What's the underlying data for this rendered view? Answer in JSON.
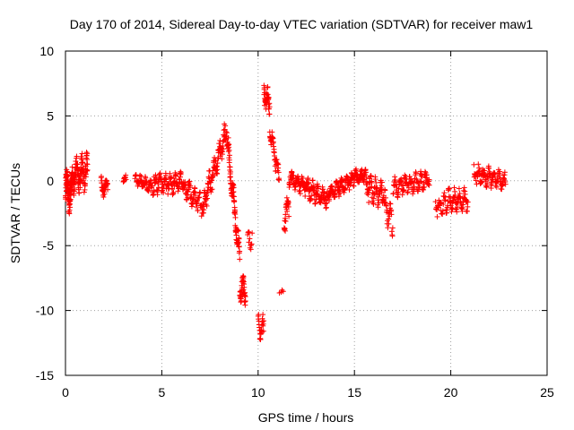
{
  "chart_data": {
    "type": "scatter",
    "title": "Day 170 of 2014, Sidereal Day-to-day VTEC variation (SDTVAR) for receiver maw1",
    "xlabel": "GPS time / hours",
    "ylabel": "SDTVAR / TECUs",
    "xlim": [
      0,
      25
    ],
    "ylim": [
      -15,
      10
    ],
    "xticks": [
      0,
      5,
      10,
      15,
      20,
      25
    ],
    "yticks": [
      -15,
      -10,
      -5,
      0,
      5,
      10
    ],
    "grid": true,
    "marker": "+",
    "color": "#ff0000",
    "series": [
      {
        "name": "SDTVAR",
        "segments": [
          {
            "t0": 0.0,
            "t1": 0.35,
            "base": -0.8,
            "slope": 0.0,
            "amp": 1.8,
            "density": 90
          },
          {
            "t0": 0.35,
            "t1": 1.15,
            "base": 0.3,
            "slope": 0.6,
            "amp": 1.6,
            "density": 110
          },
          {
            "t0": 1.85,
            "t1": 2.2,
            "base": -0.4,
            "slope": -0.5,
            "amp": 0.8,
            "density": 35
          },
          {
            "t0": 3.0,
            "t1": 3.15,
            "base": 0.1,
            "slope": 0.0,
            "amp": 0.4,
            "density": 10
          },
          {
            "t0": 3.6,
            "t1": 4.6,
            "base": 0.2,
            "slope": -0.8,
            "amp": 0.6,
            "density": 60
          },
          {
            "t0": 4.6,
            "t1": 6.2,
            "base": -0.2,
            "slope": 0.0,
            "amp": 0.9,
            "density": 110
          },
          {
            "t0": 6.2,
            "t1": 7.2,
            "base": -0.5,
            "slope": -1.6,
            "amp": 1.0,
            "density": 70
          },
          {
            "t0": 7.2,
            "t1": 8.4,
            "base": -1.5,
            "slope": 4.5,
            "amp": 1.2,
            "density": 100
          },
          {
            "t0": 8.4,
            "t1": 9.05,
            "base": 3.0,
            "slope": -14.0,
            "amp": 1.2,
            "density": 90
          },
          {
            "t0": 9.05,
            "t1": 9.35,
            "base": -8.0,
            "slope": -3.0,
            "amp": 1.4,
            "density": 40
          },
          {
            "t0": 9.45,
            "t1": 9.7,
            "base": -4.5,
            "slope": -1.0,
            "amp": 1.2,
            "density": 12
          },
          {
            "t0": 10.0,
            "t1": 10.3,
            "base": -11.0,
            "slope": -2.0,
            "amp": 1.3,
            "density": 25
          },
          {
            "t0": 10.3,
            "t1": 10.6,
            "base": 7.0,
            "slope": -5.0,
            "amp": 1.3,
            "density": 40
          },
          {
            "t0": 10.6,
            "t1": 11.1,
            "base": 4.0,
            "slope": -8.0,
            "amp": 1.0,
            "density": 45
          },
          {
            "t0": 11.1,
            "t1": 11.35,
            "base": -8.6,
            "slope": 0.0,
            "amp": 0.2,
            "density": 4
          },
          {
            "t0": 11.35,
            "t1": 11.6,
            "base": -3.0,
            "slope": 4.0,
            "amp": 1.5,
            "density": 25
          },
          {
            "t0": 11.6,
            "t1": 13.6,
            "base": 0.3,
            "slope": -0.9,
            "amp": 0.9,
            "density": 160
          },
          {
            "t0": 13.6,
            "t1": 15.0,
            "base": -1.0,
            "slope": 0.8,
            "amp": 0.7,
            "density": 110
          },
          {
            "t0": 15.0,
            "t1": 15.6,
            "base": 0.3,
            "slope": 0.3,
            "amp": 0.6,
            "density": 50
          },
          {
            "t0": 15.6,
            "t1": 16.6,
            "base": -0.5,
            "slope": -0.5,
            "amp": 1.3,
            "density": 70
          },
          {
            "t0": 16.6,
            "t1": 17.0,
            "base": -2.0,
            "slope": -3.5,
            "amp": 1.2,
            "density": 25
          },
          {
            "t0": 17.0,
            "t1": 18.9,
            "base": -0.5,
            "slope": 0.3,
            "amp": 0.9,
            "density": 110
          },
          {
            "t0": 19.2,
            "t1": 19.8,
            "base": -2.0,
            "slope": 0.5,
            "amp": 1.0,
            "density": 30
          },
          {
            "t0": 19.8,
            "t1": 20.9,
            "base": -1.5,
            "slope": 0.0,
            "amp": 1.0,
            "density": 70
          },
          {
            "t0": 21.2,
            "t1": 22.85,
            "base": 0.5,
            "slope": -0.3,
            "amp": 0.9,
            "density": 110
          }
        ]
      }
    ]
  }
}
